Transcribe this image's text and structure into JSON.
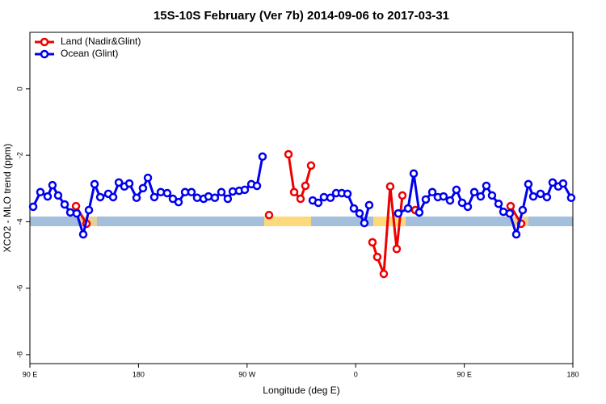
{
  "chart_data": {
    "type": "line",
    "title": "15S-10S February (Ver 7b)   2014-09-06 to 2017-03-31",
    "xlabel": "Longitude (deg E)",
    "ylabel": "XCO2 - MLO trend (ppm)",
    "xlim": [
      90,
      540
    ],
    "xticks": [
      {
        "value": 90,
        "label": "90 E"
      },
      180,
      {
        "value": 270,
        "label": "90 W"
      },
      {
        "value": 360,
        "label": "0"
      },
      {
        "value": 450,
        "label": "90 E"
      },
      {
        "value": 540,
        "label": "180"
      }
    ],
    "ylim": [
      -8.27,
      1.7
    ],
    "yticks": [
      -8,
      -6,
      -4,
      -2,
      0
    ],
    "legend": "top-left",
    "series": [
      {
        "name": "Land (Nadir&Glint)",
        "color": "#ee0000",
        "x": [
          128.2,
          136.9,
          null,
          288.2,
          null,
          304.3,
          309.0,
          314.3,
          318.3,
          323.0,
          null,
          373.9,
          377.9,
          383.3,
          388.6,
          394.0,
          398.7,
          null,
          409.4,
          null,
          488.4,
          497.1
        ],
        "values": [
          -3.53,
          -4.06,
          null,
          -3.8,
          null,
          -1.97,
          -3.11,
          -3.31,
          -2.92,
          -2.31,
          null,
          -4.62,
          -5.06,
          -5.57,
          -2.94,
          -4.82,
          -3.21,
          null,
          -3.65,
          null,
          -3.53,
          -4.06
        ]
      },
      {
        "name": "Ocean (Glint)",
        "color": "#0000ee",
        "x": [
          92.7,
          98.7,
          104.7,
          108.7,
          113.4,
          118.8,
          123.5,
          128.8,
          134.2,
          138.9,
          143.6,
          148.3,
          155.0,
          159.0,
          163.7,
          168.3,
          172.4,
          178.4,
          183.7,
          187.8,
          193.1,
          198.5,
          203.8,
          208.5,
          213.2,
          218.6,
          223.9,
          228.6,
          234.0,
          238.0,
          243.3,
          248.7,
          254.0,
          258.1,
          263.4,
          268.1,
          273.5,
          278.2,
          282.8,
          null,
          324.4,
          329.0,
          333.7,
          339.1,
          343.8,
          348.5,
          353.2,
          358.5,
          363.2,
          367.2,
          371.2,
          null,
          395.3,
          403.4,
          408.1,
          412.7,
          418.1,
          423.5,
          428.1,
          432.8,
          438.2,
          443.5,
          448.2,
          452.9,
          458.3,
          463.6,
          468.3,
          473.0,
          478.4,
          482.4,
          487.7,
          493.1,
          498.4,
          503.1,
          507.2,
          513.2,
          518.5,
          523.2,
          527.9,
          531.9,
          538.6
        ],
        "values": [
          -3.55,
          -3.11,
          -3.24,
          -2.9,
          -3.21,
          -3.48,
          -3.72,
          -3.75,
          -4.38,
          -3.65,
          -2.87,
          -3.26,
          -3.16,
          -3.26,
          -2.82,
          -2.94,
          -2.85,
          -3.28,
          -2.99,
          -2.68,
          -3.26,
          -3.11,
          -3.14,
          -3.31,
          -3.41,
          -3.11,
          -3.11,
          -3.28,
          -3.31,
          -3.24,
          -3.28,
          -3.11,
          -3.31,
          -3.09,
          -3.07,
          -3.04,
          -2.87,
          -2.92,
          -2.04,
          null,
          -3.36,
          -3.43,
          -3.26,
          -3.28,
          -3.14,
          -3.14,
          -3.16,
          -3.6,
          -3.75,
          -4.04,
          -3.5,
          null,
          -3.75,
          -3.6,
          -2.55,
          -3.72,
          -3.33,
          -3.11,
          -3.26,
          -3.24,
          -3.36,
          -3.04,
          -3.43,
          -3.55,
          -3.11,
          -3.24,
          -2.92,
          -3.21,
          -3.46,
          -3.7,
          -3.75,
          -4.38,
          -3.65,
          -2.87,
          -3.24,
          -3.16,
          -3.26,
          -2.82,
          -2.94,
          -2.85,
          -3.28
        ]
      }
    ]
  }
}
